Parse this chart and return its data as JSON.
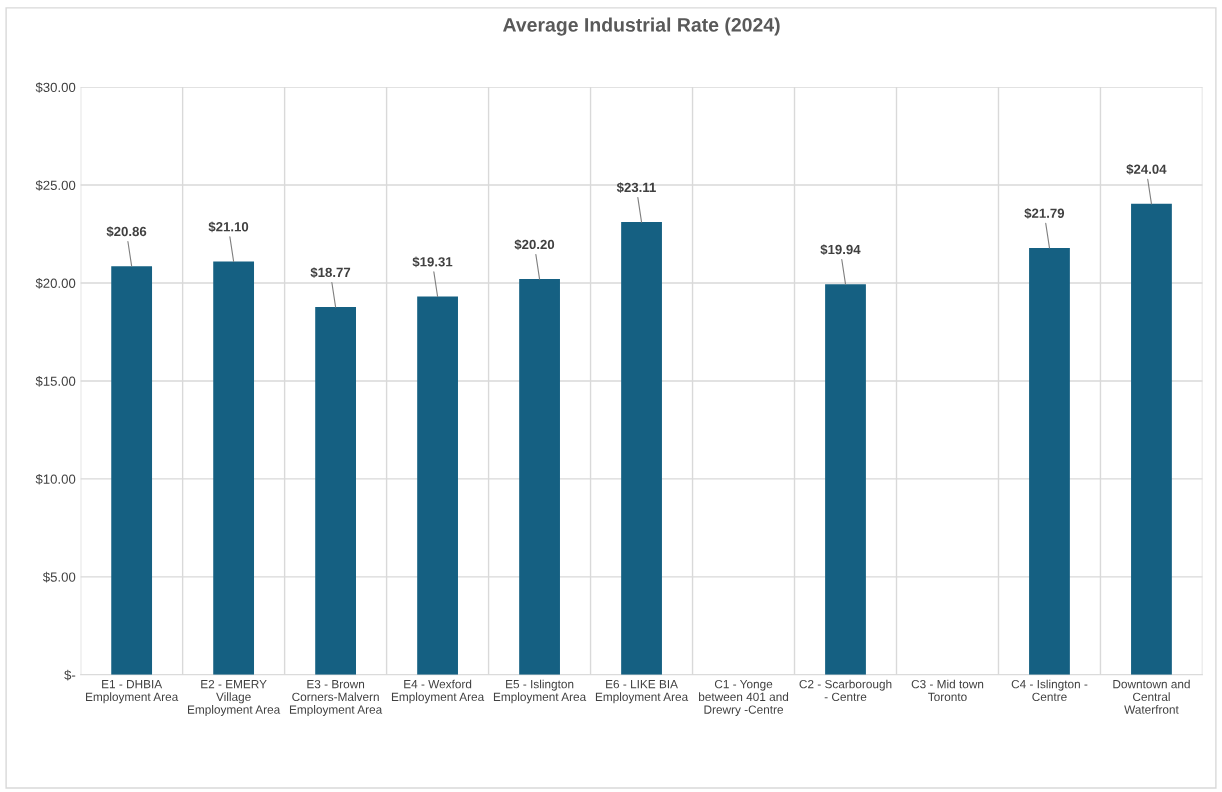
{
  "chart_data": {
    "type": "bar",
    "title": "Average Industrial Rate (2024)",
    "categories": [
      "E1 - DHBIA Employment Area",
      "E2 - EMERY Village Employment Area",
      "E3 - Brown Corners-Malvern Employment Area",
      "E4 - Wexford Employment Area",
      "E5 - Islington Employment Area",
      "E6 - LIKE BIA Employment Area",
      "C1 - Yonge between 401 and Drewry -Centre",
      "C2 - Scarborough - Centre",
      "C3 - Mid town Toronto",
      "C4 - Islington - Centre",
      "Downtown and Central Waterfront"
    ],
    "values": [
      20.86,
      21.1,
      18.77,
      19.31,
      20.2,
      23.11,
      null,
      19.94,
      null,
      21.79,
      24.04
    ],
    "value_labels": [
      "$20.86",
      "$21.10",
      "$18.77",
      "$19.31",
      "$20.20",
      "$23.11",
      null,
      "$19.94",
      null,
      "$21.79",
      "$24.04"
    ],
    "color": "#156082",
    "ylim": [
      0,
      30
    ],
    "yticks": [
      {
        "value": 0,
        "label": "$-"
      },
      {
        "value": 5,
        "label": "$5.00"
      },
      {
        "value": 10,
        "label": "$10.00"
      },
      {
        "value": 15,
        "label": "$15.00"
      },
      {
        "value": 20,
        "label": "$20.00"
      },
      {
        "value": 25,
        "label": "$25.00"
      },
      {
        "value": 30,
        "label": "$30.00"
      }
    ],
    "grid": true
  }
}
